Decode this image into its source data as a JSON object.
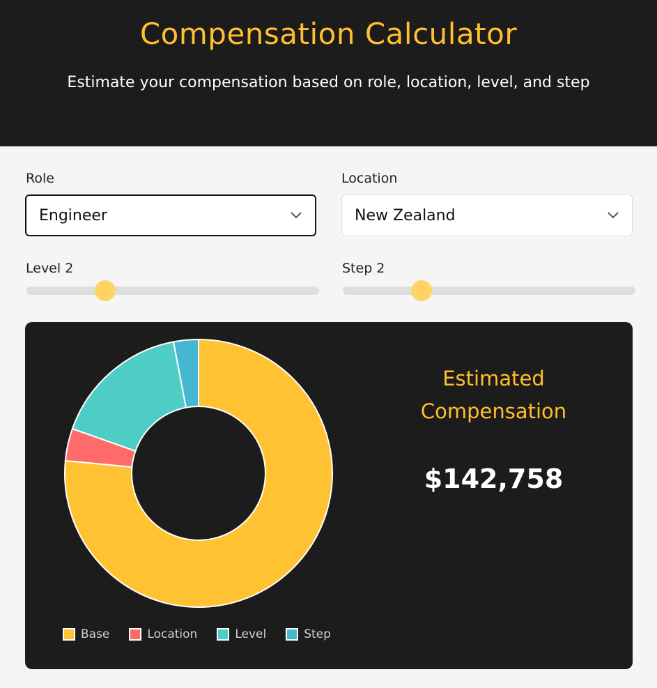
{
  "header": {
    "title": "Compensation Calculator",
    "subtitle": "Estimate your compensation based on role, location, level, and step"
  },
  "form": {
    "role_label": "Role",
    "role_value": "Engineer",
    "location_label": "Location",
    "location_value": "New Zealand",
    "level_label": "Level 2",
    "level_fraction": 0.27,
    "step_label": "Step 2",
    "step_fraction": 0.27
  },
  "result": {
    "title": "Estimated Compensation",
    "value": "$142,758"
  },
  "colors": {
    "accent": "#ffbf2e",
    "dark": "#1c1c1c"
  },
  "chart_data": {
    "type": "pie",
    "subtype": "doughnut",
    "categories": [
      "Base",
      "Location",
      "Level",
      "Step"
    ],
    "values": [
      76.5,
      3.9,
      16.6,
      3.0
    ],
    "colors": [
      "#ffc233",
      "#ff6b6b",
      "#4ecdc4",
      "#45b7d1"
    ],
    "legend": "bottom"
  }
}
